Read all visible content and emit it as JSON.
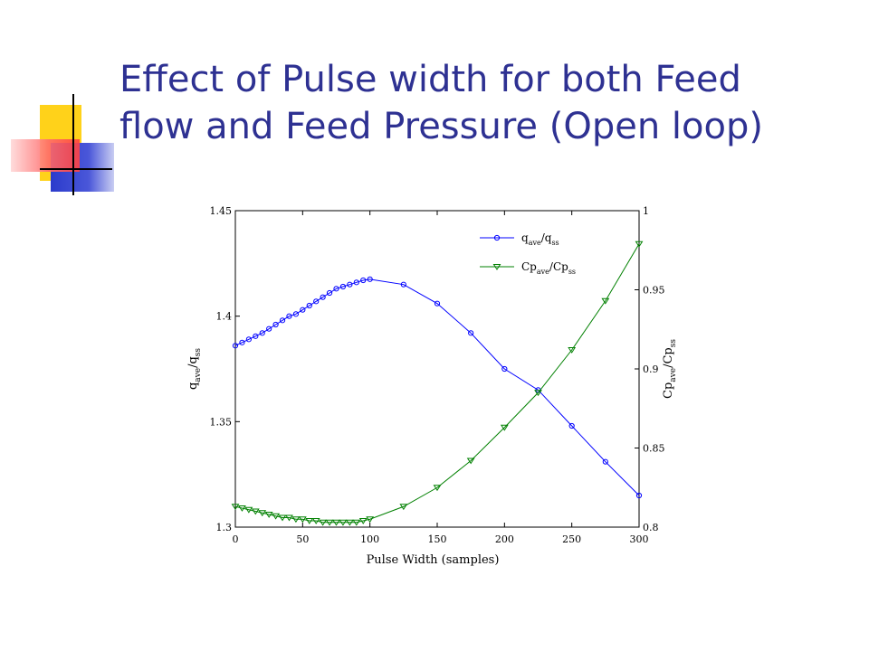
{
  "slide": {
    "title_line1": "Effect of Pulse width for both Feed",
    "title_line2": "flow and Feed Pressure (Open loop)",
    "colors": {
      "title": "#2e3192",
      "deco_yellow": "#ffd21a",
      "deco_blue": "#3340cc",
      "deco_red": "#ff5a5a"
    }
  },
  "chart_data": {
    "type": "line",
    "xlabel": "Pulse Width (samples)",
    "ylabel_left": {
      "base": "q",
      "sub1": "ave",
      "mid": "/q",
      "sub2": "ss"
    },
    "ylabel_right": {
      "base": "Cp",
      "sub1": "ave",
      "mid": "/Cp",
      "sub2": "ss"
    },
    "xlim": [
      0,
      300
    ],
    "ylim_left": [
      1.3,
      1.45
    ],
    "ylim_right": [
      0.8,
      1.0
    ],
    "x_ticks": [
      0,
      50,
      100,
      150,
      200,
      250,
      300
    ],
    "x_tick_labels": [
      "0",
      "50",
      "100",
      "150",
      "200",
      "250",
      "300"
    ],
    "y_left_ticks": [
      1.3,
      1.35,
      1.4,
      1.45
    ],
    "y_left_tick_labels": [
      "1.3",
      "1.35",
      "1.4",
      "1.45"
    ],
    "y_right_ticks": [
      0.8,
      0.85,
      0.9,
      0.95,
      1.0
    ],
    "y_right_tick_labels": [
      "0.8",
      "0.85",
      "0.9",
      "0.95",
      "1"
    ],
    "legend_position": "top-right",
    "series": [
      {
        "name": "q_ave/q_ss",
        "legend": {
          "base": "q",
          "sub1": "ave",
          "mid": "/q",
          "sub2": "ss"
        },
        "axis": "left",
        "color": "#0000ff",
        "marker": "circle",
        "x": [
          0,
          5,
          10,
          15,
          20,
          25,
          30,
          35,
          40,
          45,
          50,
          55,
          60,
          65,
          70,
          75,
          80,
          85,
          90,
          95,
          100,
          125,
          150,
          175,
          200,
          225,
          250,
          275,
          300
        ],
        "y": [
          1.386,
          1.3875,
          1.389,
          1.3905,
          1.392,
          1.394,
          1.396,
          1.398,
          1.4,
          1.401,
          1.403,
          1.405,
          1.407,
          1.409,
          1.411,
          1.413,
          1.414,
          1.415,
          1.416,
          1.417,
          1.4175,
          1.415,
          1.406,
          1.392,
          1.375,
          1.365,
          1.348,
          1.331,
          1.315
        ]
      },
      {
        "name": "Cp_ave/Cp_ss",
        "legend": {
          "base": "Cp",
          "sub1": "ave",
          "mid": "/Cp",
          "sub2": "ss"
        },
        "axis": "right",
        "color": "#008000",
        "marker": "triangle-down",
        "x": [
          0,
          5,
          10,
          15,
          20,
          25,
          30,
          35,
          40,
          45,
          50,
          55,
          60,
          65,
          70,
          75,
          80,
          85,
          90,
          95,
          100,
          125,
          150,
          175,
          200,
          225,
          250,
          275,
          300
        ],
        "y": [
          0.813,
          0.812,
          0.811,
          0.81,
          0.809,
          0.808,
          0.807,
          0.806,
          0.806,
          0.805,
          0.805,
          0.804,
          0.804,
          0.803,
          0.803,
          0.803,
          0.803,
          0.803,
          0.803,
          0.804,
          0.805,
          0.813,
          0.825,
          0.842,
          0.863,
          0.885,
          0.912,
          0.943,
          0.979
        ]
      }
    ]
  }
}
